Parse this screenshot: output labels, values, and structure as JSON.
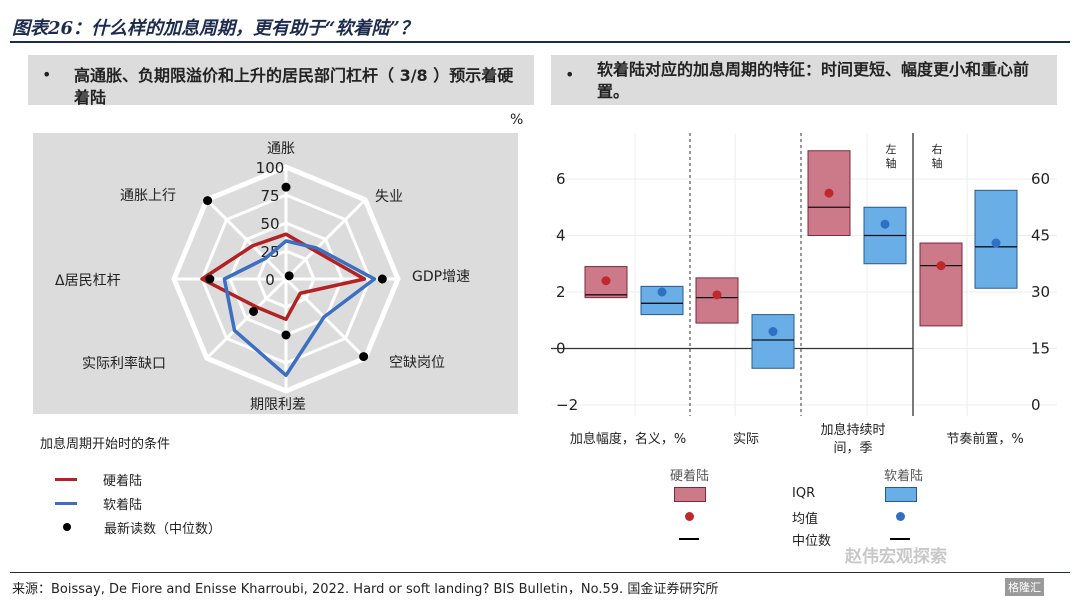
{
  "figure": {
    "title": "图表26：什么样的加息周期，更有助于“软着陆”？",
    "source": "来源：Boissay, De Fiore and Enisse Kharroubi, 2022. Hard or soft landing? BIS Bulletin，No.59. 国金证券研究所",
    "watermark": "赵伟宏观探索",
    "watermark2": "格隆汇"
  },
  "left_panel": {
    "bullet": "•",
    "header": "高通胀、负期限溢价和上升的居民部门杠杆（ 3/8 ）预示着硬着陆",
    "unit": "%",
    "legend_title": "加息周期开始时的条件",
    "legend": [
      {
        "label": "硬着陆",
        "color": "#b22222"
      },
      {
        "label": "软着陆",
        "color": "#3a6fc2"
      },
      {
        "label": "最新读数（中位数）",
        "color": "#000000"
      }
    ]
  },
  "right_panel": {
    "bullet": "•",
    "header": "软着陆对应的加息周期的特征：时间更短、幅度更小和重心前置。",
    "legend": {
      "hard_label": "硬着陆",
      "soft_label": "软着陆",
      "iqr_label": "IQR",
      "mean_label": "均值",
      "median_label": "中位数"
    }
  },
  "chart_data": [
    {
      "type": "radar",
      "rticks": [
        "0",
        "25",
        "50",
        "75",
        "100"
      ],
      "rlim": [
        0,
        100
      ],
      "axes": [
        "通胀",
        "失业",
        "GDP增速",
        "空缺岗位",
        "期限利差",
        "实际利率缺口",
        "Δ居民杠杆",
        "通胀上行"
      ],
      "series": [
        {
          "name": "硬着陆",
          "color": "#b22222",
          "values": [
            40,
            36,
            70,
            18,
            36,
            36,
            75,
            42
          ]
        },
        {
          "name": "软着陆",
          "color": "#3a6fc2",
          "values": [
            34,
            39,
            79,
            48,
            86,
            65,
            55,
            26
          ]
        },
        {
          "name": "最新读数（中位数）",
          "color": "#000000",
          "values": [
            82,
            4,
            86,
            98,
            50,
            41,
            68,
            99
          ]
        }
      ]
    },
    {
      "type": "box",
      "categories": [
        "加息幅度，名义，%",
        "实际",
        "加息持续时间，季",
        "节奏前置，%"
      ],
      "left_axis": {
        "ticks": [
          "6",
          "4",
          "2",
          "0",
          "−2"
        ],
        "range": [
          -2,
          6
        ]
      },
      "right_axis": {
        "ticks": [
          "60",
          "45",
          "30",
          "15",
          "0"
        ],
        "range": [
          0,
          60
        ]
      },
      "axis_notes": {
        "left": "左轴",
        "right": "右轴"
      },
      "colors": {
        "hard": "#cc7a8a",
        "soft": "#6aaee8",
        "hard_mean": "#c0282d",
        "soft_mean": "#2f6fc4"
      },
      "boxes": [
        {
          "category": "加息幅度，名义，%",
          "group": "硬着陆",
          "axis": "left",
          "q1": 1.8,
          "q3": 2.9,
          "median": 1.9,
          "mean": 2.4
        },
        {
          "category": "加息幅度，名义，%",
          "group": "软着陆",
          "axis": "left",
          "q1": 1.2,
          "q3": 2.2,
          "median": 1.6,
          "mean": 2.0
        },
        {
          "category": "实际",
          "group": "硬着陆",
          "axis": "left",
          "q1": 0.9,
          "q3": 2.5,
          "median": 1.8,
          "mean": 1.9
        },
        {
          "category": "实际",
          "group": "软着陆",
          "axis": "left",
          "q1": -0.7,
          "q3": 1.2,
          "median": 0.3,
          "mean": 0.6
        },
        {
          "category": "加息持续时间，季",
          "group": "硬着陆",
          "axis": "left",
          "q1": 4.0,
          "q3": 7.0,
          "median": 5.0,
          "mean": 5.5
        },
        {
          "category": "加息持续时间，季",
          "group": "软着陆",
          "axis": "left",
          "q1": 3.0,
          "q3": 5.0,
          "median": 4.0,
          "mean": 4.4
        },
        {
          "category": "节奏前置，%",
          "group": "硬着陆",
          "axis": "right",
          "q1": 21,
          "q3": 43,
          "median": 37,
          "mean": 37
        },
        {
          "category": "节奏前置，%",
          "group": "软着陆",
          "axis": "right",
          "q1": 31,
          "q3": 57,
          "median": 42,
          "mean": 43
        }
      ]
    }
  ]
}
